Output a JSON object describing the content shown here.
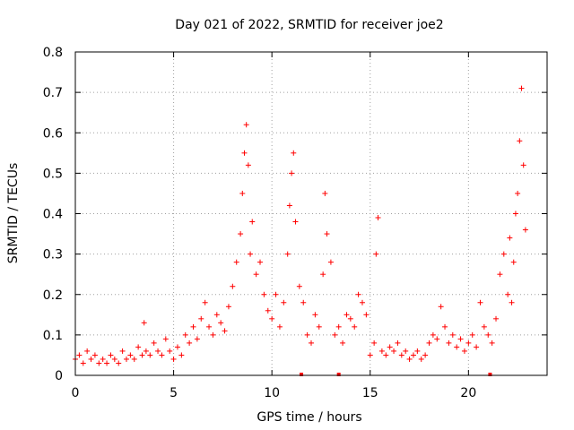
{
  "chart_data": {
    "type": "scatter",
    "title": "Day 021 of 2022, SRMTID for receiver joe2",
    "xlabel": "GPS time / hours",
    "ylabel": "SRMTID / TECUs",
    "xlim": [
      0,
      24
    ],
    "ylim": [
      0,
      0.8
    ],
    "x_ticks": [
      0,
      5,
      10,
      15,
      20
    ],
    "x_tick_labels": [
      "0",
      "5",
      "10",
      "15",
      "20"
    ],
    "y_ticks": [
      0,
      0.1,
      0.2,
      0.3,
      0.4,
      0.5,
      0.6,
      0.7,
      0.8
    ],
    "y_tick_labels": [
      "0",
      "0.1",
      "0.2",
      "0.3",
      "0.4",
      "0.5",
      "0.6",
      "0.7",
      "0.8"
    ],
    "grid": true,
    "marker": "+",
    "marker_color": "#ff0000",
    "baseline_markers": [
      11.5,
      13.4,
      21.1
    ],
    "series": [
      {
        "name": "SRMTID",
        "x": [
          0.0,
          0.2,
          0.4,
          0.6,
          0.8,
          1.0,
          1.2,
          1.4,
          1.6,
          1.8,
          2.0,
          2.2,
          2.4,
          2.6,
          2.8,
          3.0,
          3.2,
          3.4,
          3.5,
          3.6,
          3.8,
          4.0,
          4.2,
          4.4,
          4.6,
          4.8,
          5.0,
          5.2,
          5.4,
          5.6,
          5.8,
          6.0,
          6.2,
          6.4,
          6.6,
          6.8,
          7.0,
          7.2,
          7.4,
          7.6,
          7.8,
          8.0,
          8.2,
          8.4,
          8.5,
          8.6,
          8.7,
          8.8,
          8.9,
          9.0,
          9.2,
          9.4,
          9.6,
          9.8,
          10.0,
          10.2,
          10.4,
          10.6,
          10.8,
          10.9,
          11.0,
          11.1,
          11.2,
          11.4,
          11.6,
          11.8,
          12.0,
          12.2,
          12.4,
          12.6,
          12.7,
          12.8,
          13.0,
          13.2,
          13.4,
          13.6,
          13.8,
          14.0,
          14.2,
          14.4,
          14.6,
          14.8,
          15.0,
          15.2,
          15.3,
          15.4,
          15.6,
          15.8,
          16.0,
          16.2,
          16.4,
          16.6,
          16.8,
          17.0,
          17.2,
          17.4,
          17.6,
          17.8,
          18.0,
          18.2,
          18.4,
          18.6,
          18.8,
          19.0,
          19.2,
          19.4,
          19.6,
          19.8,
          20.0,
          20.2,
          20.4,
          20.6,
          20.8,
          21.0,
          21.2,
          21.4,
          21.6,
          21.8,
          22.0,
          22.1,
          22.2,
          22.3,
          22.4,
          22.5,
          22.6,
          22.7,
          22.8,
          22.9
        ],
        "y": [
          0.04,
          0.05,
          0.03,
          0.06,
          0.04,
          0.05,
          0.03,
          0.04,
          0.03,
          0.05,
          0.04,
          0.03,
          0.06,
          0.04,
          0.05,
          0.04,
          0.07,
          0.05,
          0.13,
          0.06,
          0.05,
          0.08,
          0.06,
          0.05,
          0.09,
          0.06,
          0.04,
          0.07,
          0.05,
          0.1,
          0.08,
          0.12,
          0.09,
          0.14,
          0.18,
          0.12,
          0.1,
          0.15,
          0.13,
          0.11,
          0.17,
          0.22,
          0.28,
          0.35,
          0.45,
          0.55,
          0.62,
          0.52,
          0.3,
          0.38,
          0.25,
          0.28,
          0.2,
          0.16,
          0.14,
          0.2,
          0.12,
          0.18,
          0.3,
          0.42,
          0.5,
          0.55,
          0.38,
          0.22,
          0.18,
          0.1,
          0.08,
          0.15,
          0.12,
          0.25,
          0.45,
          0.35,
          0.28,
          0.1,
          0.12,
          0.08,
          0.15,
          0.14,
          0.12,
          0.2,
          0.18,
          0.15,
          0.05,
          0.08,
          0.3,
          0.39,
          0.06,
          0.05,
          0.07,
          0.06,
          0.08,
          0.05,
          0.06,
          0.04,
          0.05,
          0.06,
          0.04,
          0.05,
          0.08,
          0.1,
          0.09,
          0.17,
          0.12,
          0.08,
          0.1,
          0.07,
          0.09,
          0.06,
          0.08,
          0.1,
          0.07,
          0.18,
          0.12,
          0.1,
          0.08,
          0.14,
          0.25,
          0.3,
          0.2,
          0.34,
          0.18,
          0.28,
          0.4,
          0.45,
          0.58,
          0.71,
          0.52,
          0.36
        ],
        "color": "#ff0000"
      }
    ]
  }
}
